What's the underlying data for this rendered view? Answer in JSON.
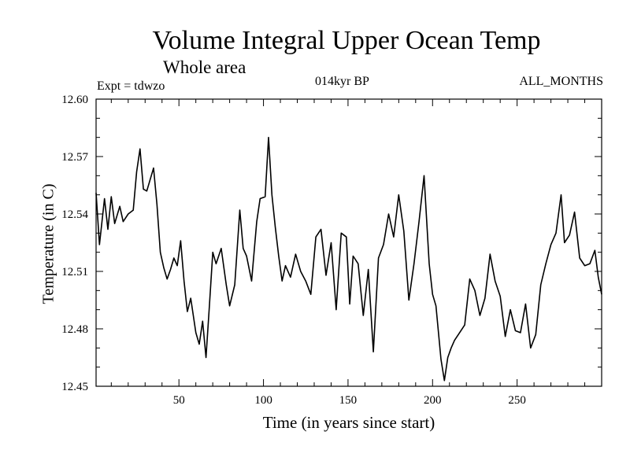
{
  "header": {
    "title": "Volume Integral Upper Ocean Temp",
    "subtitle": "Whole area",
    "expt": "Expt = tdwzo",
    "period": "014kyr BP",
    "months": "ALL_MONTHS"
  },
  "chart_data": {
    "type": "line",
    "title": "Volume Integral Upper Ocean Temp",
    "subtitle": "Whole area",
    "xlabel": "Time (in years since start)",
    "ylabel": "Temperature (in C)",
    "xlim": [
      1,
      300
    ],
    "ylim": [
      12.45,
      12.6
    ],
    "x_ticks": [
      50,
      100,
      150,
      200,
      250
    ],
    "y_ticks": [
      "12.45",
      "12.48",
      "12.51",
      "12.54",
      "12.57",
      "12.60"
    ],
    "grid": false,
    "series": [
      {
        "color": "#000000",
        "x": [
          1,
          3,
          6,
          8,
          10,
          12,
          15,
          17,
          20,
          23,
          25,
          27,
          29,
          31,
          33,
          35,
          37,
          39,
          41,
          43,
          45,
          47,
          49,
          51,
          53,
          55,
          57,
          60,
          62,
          64,
          66,
          68,
          70,
          72,
          75,
          78,
          80,
          83,
          86,
          88,
          90,
          93,
          96,
          98,
          101,
          103,
          105,
          107,
          109,
          111,
          113,
          116,
          119,
          122,
          125,
          128,
          131,
          134,
          137,
          140,
          143,
          146,
          149,
          151,
          153,
          156,
          159,
          162,
          165,
          168,
          171,
          174,
          177,
          180,
          183,
          186,
          189,
          192,
          195,
          198,
          200,
          202,
          205,
          207,
          209,
          211,
          213,
          216,
          219,
          222,
          225,
          228,
          231,
          234,
          237,
          240,
          243,
          246,
          249,
          252,
          255,
          258,
          261,
          264,
          267,
          270,
          273,
          276,
          278,
          281,
          284,
          287,
          290,
          293,
          296,
          298,
          300
        ],
        "y": [
          12.551,
          12.524,
          12.548,
          12.532,
          12.549,
          12.535,
          12.544,
          12.536,
          12.54,
          12.542,
          12.562,
          12.574,
          12.553,
          12.552,
          12.558,
          12.564,
          12.545,
          12.52,
          12.512,
          12.506,
          12.511,
          12.517,
          12.513,
          12.526,
          12.505,
          12.489,
          12.496,
          12.478,
          12.472,
          12.484,
          12.465,
          12.492,
          12.52,
          12.514,
          12.522,
          12.503,
          12.492,
          12.503,
          12.542,
          12.522,
          12.518,
          12.505,
          12.536,
          12.548,
          12.549,
          12.58,
          12.55,
          12.533,
          12.518,
          12.505,
          12.513,
          12.507,
          12.519,
          12.51,
          12.505,
          12.498,
          12.528,
          12.532,
          12.508,
          12.525,
          12.49,
          12.53,
          12.528,
          12.493,
          12.518,
          12.514,
          12.487,
          12.511,
          12.468,
          12.517,
          12.524,
          12.54,
          12.528,
          12.55,
          12.531,
          12.495,
          12.514,
          12.536,
          12.56,
          12.514,
          12.498,
          12.492,
          12.464,
          12.453,
          12.465,
          12.47,
          12.474,
          12.478,
          12.482,
          12.506,
          12.5,
          12.487,
          12.496,
          12.519,
          12.505,
          12.497,
          12.476,
          12.49,
          12.479,
          12.478,
          12.493,
          12.47,
          12.477,
          12.503,
          12.514,
          12.524,
          12.53,
          12.55,
          12.525,
          12.529,
          12.541,
          12.517,
          12.513,
          12.514,
          12.521,
          12.507,
          12.498
        ]
      }
    ]
  }
}
